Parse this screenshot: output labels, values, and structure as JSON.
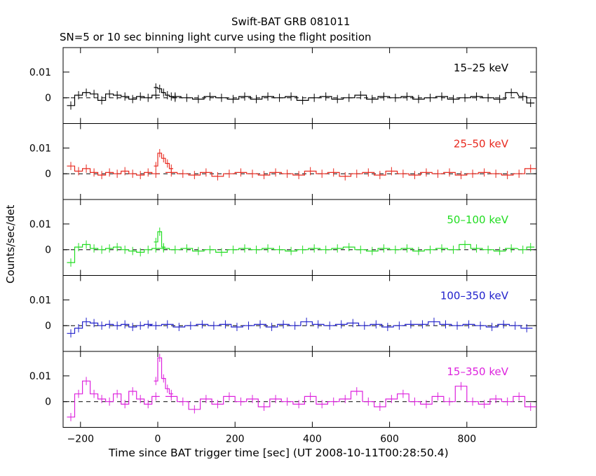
{
  "chart_data": {
    "type": "line",
    "title": "Swift-BAT GRB 081011",
    "subtitle": "SN=5 or 10 sec binning light curve using the flight position",
    "xlabel": "Time since BAT trigger time [sec] (UT 2008-10-11T00:28:50.4)",
    "ylabel": "Counts/sec/det",
    "xlim": [
      -245,
      980
    ],
    "x_ticks": [
      -200,
      0,
      200,
      400,
      600,
      800
    ],
    "x_tick_labels": [
      "−200",
      "0",
      "200",
      "400",
      "600",
      "800"
    ],
    "panels": [
      {
        "band": "15–25 keV",
        "color": "#000000",
        "ylim": [
          -0.01,
          0.0195
        ],
        "y_ticks": [
          0,
          0.01
        ],
        "y_tick_labels": [
          "0",
          "0.01"
        ],
        "segments": [
          {
            "x": [
              -225,
              -205,
              -185,
              -165,
              -145,
              -125,
              -105,
              -85,
              -65,
              -45,
              -25,
              -5
            ],
            "y": [
              -0.003,
              0.001,
              0.002,
              0.0015,
              -0.001,
              0.0015,
              0.001,
              0.0005,
              -0.0005,
              0.0005,
              0.0,
              0.001
            ]
          },
          {
            "x": [
              -5,
              5,
              15,
              25,
              35,
              45
            ],
            "y": [
              0.004,
              0.0035,
              0.002,
              0.001,
              0.0005,
              0.0
            ]
          },
          {
            "x": [
              45,
              75,
              105,
              135,
              165,
              195,
              225,
              255,
              285,
              315,
              345,
              375,
              405,
              435,
              465,
              495,
              525,
              555,
              585,
              615,
              645,
              675,
              705,
              735,
              765,
              795,
              825,
              855,
              885,
              915,
              945,
              965
            ],
            "y": [
              0.0005,
              0.0,
              -0.0005,
              0.0005,
              0.0,
              -0.0005,
              0.0005,
              -0.0005,
              0.0005,
              0.0,
              0.0005,
              -0.001,
              0.0,
              0.0005,
              -0.0005,
              0.0,
              0.001,
              -0.0005,
              0.0005,
              0.0,
              0.0005,
              -0.0005,
              0.0,
              0.0005,
              -0.0005,
              0.0,
              0.0005,
              0.0,
              -0.0005,
              0.002,
              0.0005,
              -0.002
            ]
          }
        ]
      },
      {
        "band": "25–50 keV",
        "color": "#e8281e",
        "ylim": [
          -0.01,
          0.0195
        ],
        "y_ticks": [
          0,
          0.01
        ],
        "y_tick_labels": [
          "0",
          "0.01"
        ],
        "segments": [
          {
            "x": [
              -225,
              -205,
              -185,
              -165,
              -145,
              -125,
              -105,
              -85,
              -65,
              -45,
              -25,
              -5
            ],
            "y": [
              0.003,
              0.001,
              0.002,
              0.0005,
              -0.0005,
              0.0005,
              0.0,
              0.001,
              0.0,
              -0.0005,
              0.0005,
              0.0
            ]
          },
          {
            "x": [
              -5,
              5,
              15,
              25,
              35
            ],
            "y": [
              0.003,
              0.008,
              0.006,
              0.004,
              0.002
            ]
          },
          {
            "x": [
              35,
              65,
              95,
              125,
              155,
              185,
              215,
              245,
              275,
              305,
              335,
              365,
              395,
              425,
              455,
              485,
              515,
              545,
              575,
              605,
              635,
              665,
              695,
              725,
              755,
              785,
              815,
              845,
              875,
              905,
              935,
              965
            ],
            "y": [
              0.0005,
              0.0,
              -0.0005,
              0.0005,
              -0.001,
              0.0,
              0.0005,
              0.0,
              -0.0005,
              0.0005,
              0.0,
              -0.0005,
              0.001,
              0.0,
              0.0005,
              -0.001,
              0.0,
              0.0005,
              -0.0005,
              0.001,
              0.0,
              -0.0005,
              0.0005,
              0.0,
              0.0005,
              -0.0005,
              0.0,
              0.0005,
              0.0,
              -0.0005,
              0.0,
              0.002
            ]
          }
        ]
      },
      {
        "band": "50–100 keV",
        "color": "#22dd22",
        "ylim": [
          -0.01,
          0.0195
        ],
        "y_ticks": [
          0,
          0.01
        ],
        "y_tick_labels": [
          "0",
          "0.01"
        ],
        "segments": [
          {
            "x": [
              -225,
              -205,
              -185,
              -165,
              -145,
              -125,
              -105,
              -85,
              -65,
              -45,
              -25,
              -5
            ],
            "y": [
              -0.005,
              0.001,
              0.002,
              0.0005,
              0.0,
              0.0005,
              0.001,
              0.0,
              -0.0005,
              -0.001,
              0.0,
              0.0005
            ]
          },
          {
            "x": [
              -5,
              5,
              15
            ],
            "y": [
              0.003,
              0.007,
              0.001
            ]
          },
          {
            "x": [
              15,
              45,
              75,
              105,
              135,
              165,
              195,
              225,
              255,
              285,
              315,
              345,
              375,
              405,
              435,
              465,
              495,
              525,
              555,
              585,
              615,
              645,
              675,
              705,
              735,
              765,
              795,
              825,
              855,
              885,
              915,
              945,
              965
            ],
            "y": [
              0.0005,
              0.0,
              0.0005,
              -0.0005,
              0.0,
              -0.001,
              0.0,
              0.0005,
              0.0,
              0.0005,
              0.0,
              -0.0005,
              0.0,
              0.0005,
              0.0,
              0.0005,
              0.001,
              0.0,
              -0.0005,
              0.0005,
              0.0,
              0.0005,
              -0.0005,
              0.0,
              0.0005,
              0.0,
              0.002,
              0.0005,
              0.0,
              -0.0005,
              0.0005,
              0.0,
              0.001
            ]
          }
        ]
      },
      {
        "band": "100–350 keV",
        "color": "#2222cc",
        "ylim": [
          -0.01,
          0.0195
        ],
        "y_ticks": [
          0,
          0.01
        ],
        "y_tick_labels": [
          "0",
          "0.01"
        ],
        "segments": [
          {
            "x": [
              -225,
              -205,
              -185,
              -165,
              -145,
              -125,
              -105,
              -85,
              -65,
              -45,
              -25,
              -5,
              25,
              55,
              85,
              115,
              145,
              175,
              205,
              235,
              265,
              295,
              325,
              355,
              385,
              415,
              445,
              475,
              505,
              535,
              565,
              595,
              625,
              655,
              685,
              715,
              745,
              775,
              805,
              835,
              865,
              895,
              925,
              955
            ],
            "y": [
              -0.003,
              -0.001,
              0.0015,
              0.001,
              0.0,
              0.0005,
              0.0,
              0.0005,
              -0.0005,
              0.0,
              0.0005,
              0.0,
              0.0005,
              -0.0005,
              0.0,
              0.0005,
              0.0,
              0.0005,
              -0.0005,
              0.0,
              0.0005,
              -0.0005,
              0.0005,
              0.0,
              0.0015,
              0.0005,
              0.0,
              0.0005,
              0.001,
              0.0,
              0.0005,
              -0.0005,
              0.0,
              0.0005,
              0.0005,
              0.0015,
              0.0005,
              0.0,
              0.0005,
              0.0,
              -0.0005,
              0.0005,
              0.0,
              -0.001
            ]
          }
        ]
      },
      {
        "band": "15–350 keV",
        "color": "#dd22dd",
        "ylim": [
          -0.01,
          0.0195
        ],
        "y_ticks": [
          0,
          0.01
        ],
        "y_tick_labels": [
          "0",
          "0.01"
        ],
        "segments": [
          {
            "x": [
              -225,
              -205,
              -185,
              -165,
              -145,
              -125,
              -105,
              -85,
              -65,
              -45,
              -25,
              -5
            ],
            "y": [
              -0.006,
              0.003,
              0.008,
              0.003,
              0.001,
              0.0,
              0.003,
              -0.001,
              0.004,
              0.001,
              -0.001,
              0.002
            ]
          },
          {
            "x": [
              -5,
              5,
              15,
              25,
              35
            ],
            "y": [
              0.008,
              0.017,
              0.009,
              0.005,
              0.003
            ]
          },
          {
            "x": [
              35,
              65,
              95,
              125,
              155,
              185,
              215,
              245,
              275,
              305,
              335,
              365,
              395,
              425,
              455,
              485,
              515,
              545,
              575,
              605,
              635,
              665,
              695,
              725,
              755,
              785,
              815,
              845,
              875,
              905,
              935,
              965
            ],
            "y": [
              0.002,
              0.0,
              -0.003,
              0.001,
              -0.001,
              0.002,
              0.0,
              0.001,
              -0.002,
              0.001,
              0.0,
              -0.001,
              0.002,
              -0.001,
              0.0,
              0.001,
              0.004,
              0.0,
              -0.002,
              0.001,
              0.003,
              0.0,
              -0.001,
              0.002,
              0.0,
              0.006,
              0.0,
              -0.001,
              0.001,
              0.0,
              0.002,
              -0.002
            ]
          }
        ]
      }
    ]
  }
}
